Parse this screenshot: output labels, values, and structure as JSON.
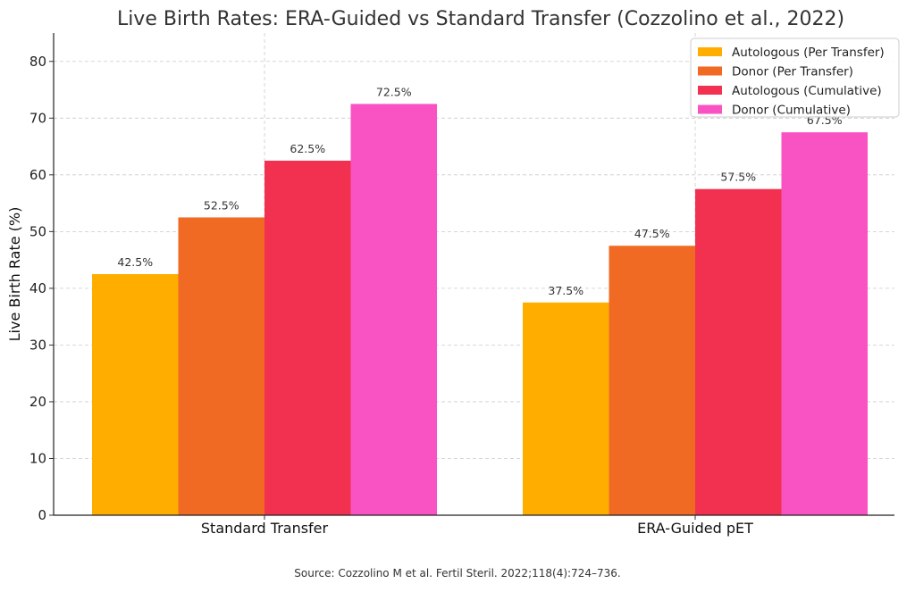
{
  "chart_data": {
    "type": "bar",
    "title": "Live Birth Rates: ERA-Guided vs Standard Transfer (Cozzolino et al., 2022)",
    "xlabel": "",
    "ylabel": "Live Birth Rate (%)",
    "ylim": [
      0,
      85
    ],
    "yticks": [
      0,
      10,
      20,
      30,
      40,
      50,
      60,
      70,
      80
    ],
    "grid": true,
    "legend_position": "top-right",
    "categories": [
      "Standard Transfer",
      "ERA-Guided pET"
    ],
    "series": [
      {
        "name": "Autologous (Per Transfer)",
        "values": [
          42.5,
          37.5
        ],
        "labels": [
          "42.5%",
          "37.5%"
        ],
        "color": "#FFAE00"
      },
      {
        "name": "Donor (Per Transfer)",
        "values": [
          52.5,
          47.5
        ],
        "labels": [
          "52.5%",
          "47.5%"
        ],
        "color": "#F06A23"
      },
      {
        "name": "Autologous (Cumulative)",
        "values": [
          62.5,
          57.5
        ],
        "labels": [
          "62.5%",
          "57.5%"
        ],
        "color": "#F23150"
      },
      {
        "name": "Donor (Cumulative)",
        "values": [
          72.5,
          67.5
        ],
        "labels": [
          "72.5%",
          "67.5%"
        ],
        "color": "#F953C3"
      }
    ]
  },
  "footnote": "Source: Cozzolino M et al. Fertil Steril. 2022;118(4):724–736."
}
